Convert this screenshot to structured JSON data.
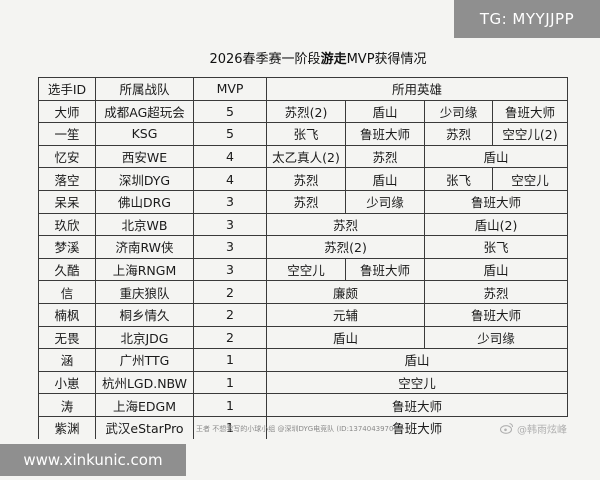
{
  "badge": "TG: MYYJJPP",
  "title": {
    "prefix": "2026春季赛一阶段",
    "bold": "游走",
    "suffix": "MVP获得情况"
  },
  "table": {
    "headers": [
      "选手ID",
      "所属战队",
      "MVP",
      "所用英雄"
    ],
    "rows": [
      {
        "player": "大师",
        "team": "成都AG超玩会",
        "mvp": "5",
        "heroes": [
          "苏烈(2)",
          "盾山",
          "少司缘",
          "鲁班大师"
        ]
      },
      {
        "player": "一笙",
        "team": "KSG",
        "mvp": "5",
        "heroes": [
          "张飞",
          "鲁班大师",
          "苏烈",
          "空空儿(2)"
        ]
      },
      {
        "player": "忆安",
        "team": "西安WE",
        "mvp": "4",
        "heroes": [
          "太乙真人(2)",
          "苏烈",
          "盾山"
        ]
      },
      {
        "player": "落空",
        "team": "深圳DYG",
        "mvp": "4",
        "heroes": [
          "苏烈",
          "盾山",
          "张飞",
          "空空儿"
        ]
      },
      {
        "player": "呆呆",
        "team": "佛山DRG",
        "mvp": "3",
        "heroes": [
          "苏烈",
          "少司缘",
          "鲁班大师"
        ]
      },
      {
        "player": "玖欣",
        "team": "北京WB",
        "mvp": "3",
        "heroes": [
          "苏烈",
          "盾山(2)"
        ]
      },
      {
        "player": "梦溪",
        "team": "济南RW侠",
        "mvp": "3",
        "heroes": [
          "苏烈(2)",
          "张飞"
        ]
      },
      {
        "player": "久酷",
        "team": "上海RNGM",
        "mvp": "3",
        "heroes": [
          "空空儿",
          "鲁班大师",
          "盾山"
        ]
      },
      {
        "player": "信",
        "team": "重庆狼队",
        "mvp": "2",
        "heroes": [
          "廉颇",
          "苏烈"
        ]
      },
      {
        "player": "楠枫",
        "team": "桐乡情久",
        "mvp": "2",
        "heroes": [
          "元辅",
          "鲁班大师"
        ]
      },
      {
        "player": "无畏",
        "team": "北京JDG",
        "mvp": "2",
        "heroes": [
          "盾山",
          "少司缘"
        ]
      },
      {
        "player": "涵",
        "team": "广州TTG",
        "mvp": "1",
        "heroes": [
          "盾山"
        ]
      },
      {
        "player": "小崽",
        "team": "杭州LGD.NBW",
        "mvp": "1",
        "heroes": [
          "空空儿"
        ]
      },
      {
        "player": "涛",
        "team": "上海EDGM",
        "mvp": "1",
        "heroes": [
          "鲁班大师"
        ]
      },
      {
        "player": "紫渊",
        "team": "武汉eStarPro",
        "mvp": "1",
        "heroes": [
          "鲁班大师"
        ]
      }
    ]
  },
  "footer": "王者 不想我写的小球小组 @深圳DYG电竞队 (ID:1374043970)",
  "weibo": "@韩雨炫峰",
  "site": "www.xinkunic.com"
}
